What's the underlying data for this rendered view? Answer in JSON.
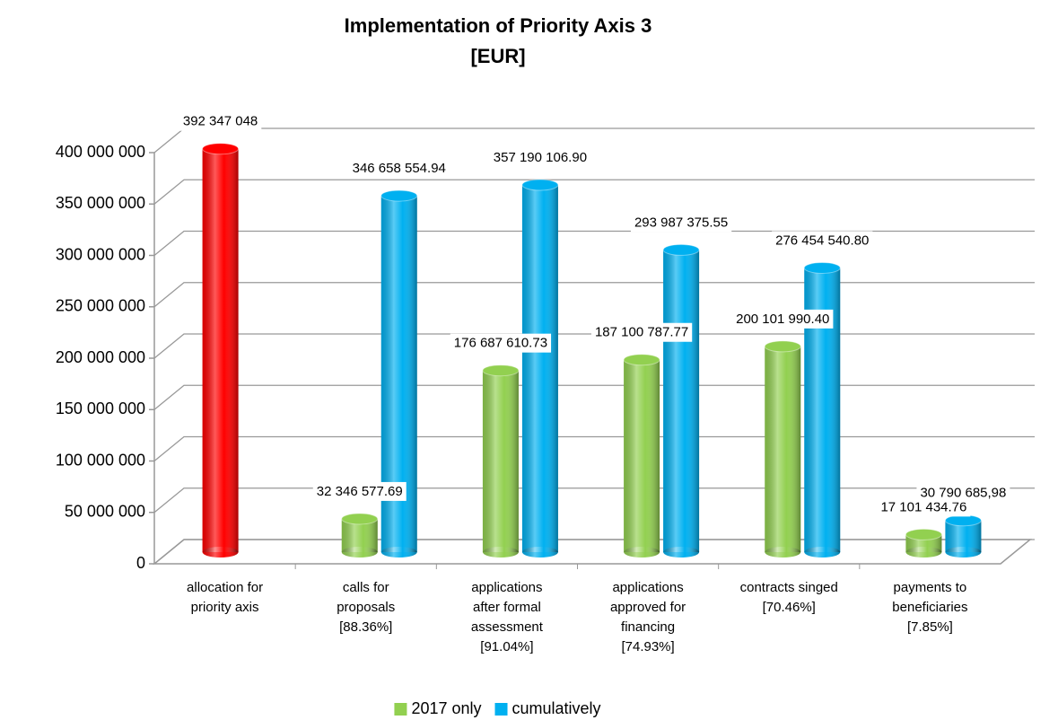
{
  "chart_data": {
    "type": "bar3d",
    "title": "Implementation of Priority Axis 3",
    "subtitle": "[EUR]",
    "categories": [
      [
        "allocation for",
        "priority axis"
      ],
      [
        "calls for",
        "proposals",
        "[88.36%]"
      ],
      [
        "applications",
        "after formal",
        "assessment",
        "[91.04%]"
      ],
      [
        "applications",
        "approved for",
        "financing",
        "[74.93%]"
      ],
      [
        "contracts singed",
        "[70.46%]"
      ],
      [
        "payments to",
        "beneficiaries",
        "[7.85%]"
      ]
    ],
    "series": [
      {
        "name": "2017 only",
        "color": "#92d050",
        "values": [
          null,
          32346577.69,
          176687610.73,
          187100787.77,
          200101990.4,
          17101434.76
        ],
        "value_labels": [
          null,
          "32 346 577.69",
          "176 687 610.73",
          "187 100 787.77",
          "200 101 990.40",
          "17 101 434.76"
        ]
      },
      {
        "name": "cumulatively",
        "color": "#00b0f0",
        "point_colors": [
          "#ff0000",
          null,
          null,
          null,
          null,
          null
        ],
        "values": [
          392347048,
          346658554.94,
          357190106.9,
          293987375.55,
          276454540.8,
          30790685.98
        ],
        "value_labels": [
          "392 347 048",
          "346 658 554.94",
          "357 190 106.90",
          "293 987 375.55",
          "276 454 540.80",
          "30 790 685,98"
        ]
      }
    ],
    "ylim": [
      0,
      400000000
    ],
    "yticks": [
      0,
      {
        "value": 50000000,
        "label": "50 000 000"
      },
      {
        "value": 100000000,
        "label": "100 000 000"
      },
      {
        "value": 150000000,
        "label": "150 000 000"
      },
      {
        "value": 200000000,
        "label": "200 000 000"
      },
      {
        "value": 250000000,
        "label": "250 000 000"
      },
      {
        "value": 300000000,
        "label": "300 000 000"
      },
      {
        "value": 350000000,
        "label": "350 000 000"
      },
      {
        "value": 400000000,
        "label": "400 000 000"
      }
    ],
    "grid": true,
    "legend": "bottom"
  }
}
